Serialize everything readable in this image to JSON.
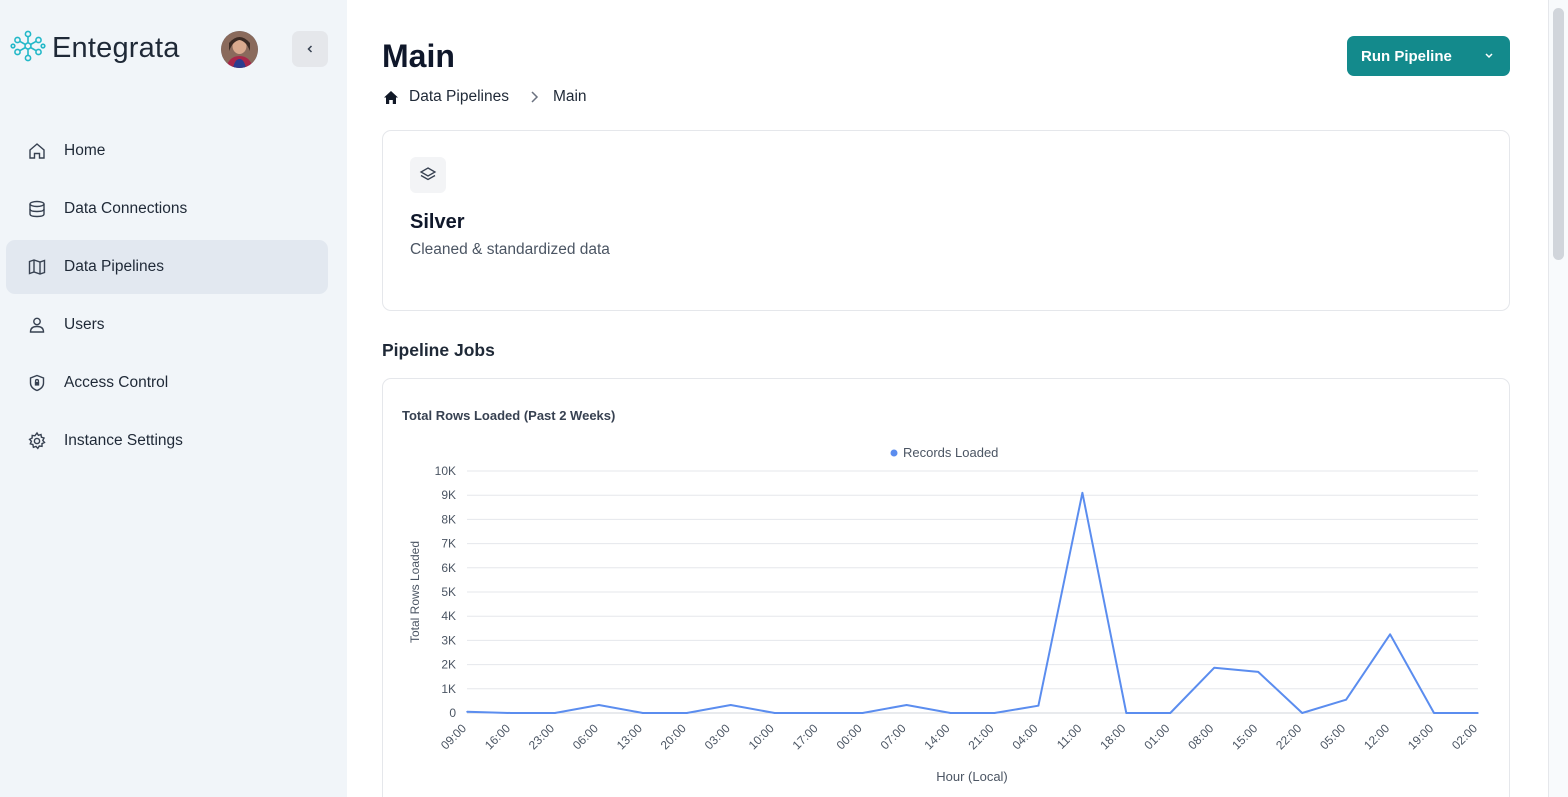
{
  "sidebar": {
    "brand": "Entegrata",
    "items": [
      {
        "label": "Home",
        "icon": "home-icon",
        "active": false
      },
      {
        "label": "Data Connections",
        "icon": "database-icon",
        "active": false
      },
      {
        "label": "Data Pipelines",
        "icon": "map-icon",
        "active": true
      },
      {
        "label": "Users",
        "icon": "user-icon",
        "active": false
      },
      {
        "label": "Access Control",
        "icon": "shield-icon",
        "active": false
      },
      {
        "label": "Instance Settings",
        "icon": "gear-icon",
        "active": false
      }
    ]
  },
  "header": {
    "title": "Main",
    "breadcrumb": [
      "Data Pipelines",
      "Main"
    ],
    "run_button": "Run Pipeline"
  },
  "layer_card": {
    "title": "Silver",
    "subtitle": "Cleaned & standardized data",
    "icon": "layers-icon"
  },
  "section": {
    "title": "Pipeline Jobs"
  },
  "colors": {
    "accent": "#138a8c",
    "series": "#5b8def",
    "sidebar_bg": "#f1f5f9"
  },
  "chart_data": {
    "type": "line",
    "title": "Total Rows Loaded (Past 2 Weeks)",
    "xlabel": "Hour (Local)",
    "ylabel": "Total Rows Loaded",
    "legend": "top-center",
    "grid": true,
    "ylim": [
      0,
      10000
    ],
    "yticks": [
      "0",
      "1K",
      "2K",
      "3K",
      "4K",
      "5K",
      "6K",
      "7K",
      "8K",
      "9K",
      "10K"
    ],
    "categories": [
      "09:00",
      "16:00",
      "23:00",
      "06:00",
      "13:00",
      "20:00",
      "03:00",
      "10:00",
      "17:00",
      "00:00",
      "07:00",
      "14:00",
      "21:00",
      "04:00",
      "11:00",
      "18:00",
      "01:00",
      "08:00",
      "15:00",
      "22:00",
      "05:00",
      "12:00",
      "19:00",
      "02:00"
    ],
    "series": [
      {
        "name": "Records Loaded",
        "values": [
          50,
          0,
          0,
          330,
          0,
          0,
          330,
          0,
          0,
          0,
          330,
          0,
          0,
          300,
          9100,
          0,
          0,
          1870,
          1700,
          0,
          550,
          3250,
          0,
          0
        ]
      }
    ]
  }
}
